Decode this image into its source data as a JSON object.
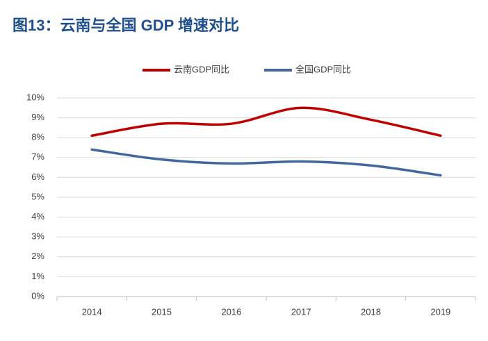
{
  "chart_data": {
    "type": "line",
    "title": "图13：云南与全国 GDP 增速对比",
    "categories": [
      "2014",
      "2015",
      "2016",
      "2017",
      "2018",
      "2019"
    ],
    "series": [
      {
        "name": "云南GDP同比",
        "color": "#c00000",
        "values": [
          8.1,
          8.7,
          8.7,
          9.5,
          8.9,
          8.1
        ]
      },
      {
        "name": "全国GDP同比",
        "color": "#41679c",
        "values": [
          7.4,
          6.9,
          6.7,
          6.8,
          6.6,
          6.1
        ]
      }
    ],
    "ylim": [
      0,
      10
    ],
    "yticks": [
      {
        "value": 0,
        "label": "0%"
      },
      {
        "value": 1,
        "label": "1%"
      },
      {
        "value": 2,
        "label": "2%"
      },
      {
        "value": 3,
        "label": "3%"
      },
      {
        "value": 4,
        "label": "4%"
      },
      {
        "value": 5,
        "label": "5%"
      },
      {
        "value": 6,
        "label": "6%"
      },
      {
        "value": 7,
        "label": "7%"
      },
      {
        "value": 8,
        "label": "8%"
      },
      {
        "value": 9,
        "label": "9%"
      },
      {
        "value": 10,
        "label": "10%"
      }
    ],
    "grid": true,
    "legend": "top"
  }
}
